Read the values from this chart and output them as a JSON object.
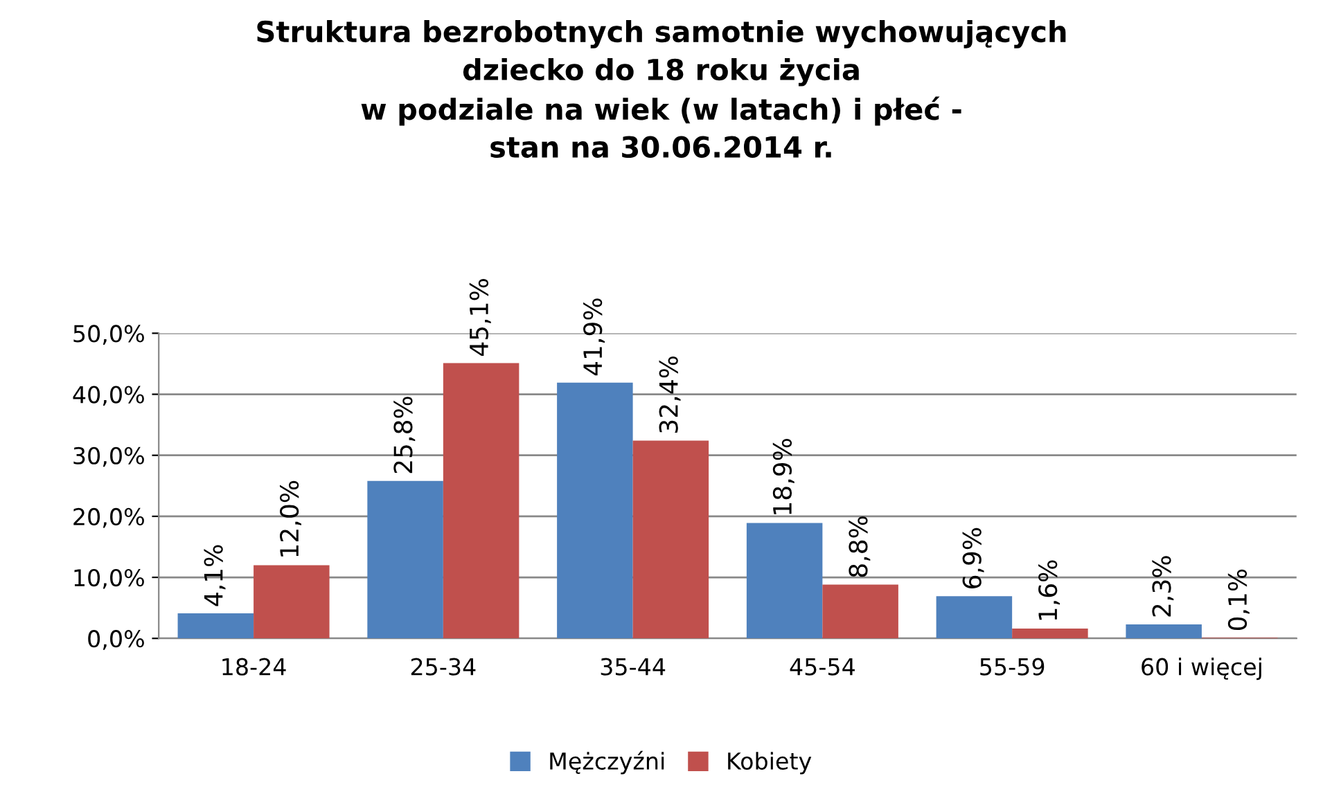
{
  "chart_data": {
    "type": "bar",
    "title": "Struktura bezrobotnych samotnie wychowujących\ndziecko do 18 roku życia\nw podziale na wiek (w latach) i płeć -\nstan na 30.06.2014 r.",
    "categories": [
      "18-24",
      "25-34",
      "35-44",
      "45-54",
      "55-59",
      "60 i więcej"
    ],
    "series": [
      {
        "name": "Mężczyźni",
        "color": "#4f81bd",
        "values": [
          4.1,
          25.8,
          41.9,
          18.9,
          6.9,
          2.3
        ],
        "value_labels": [
          "4,1%",
          "25,8%",
          "41,9%",
          "18,9%",
          "6,9%",
          "2,3%"
        ]
      },
      {
        "name": "Kobiety",
        "color": "#c0504d",
        "values": [
          12.0,
          45.1,
          32.4,
          8.8,
          1.6,
          0.1
        ],
        "value_labels": [
          "12,0%",
          "45,1%",
          "32,4%",
          "8,8%",
          "1,6%",
          "0,1%"
        ]
      }
    ],
    "ylim": [
      0,
      50
    ],
    "yticks": [
      {
        "value": 0,
        "label": "0,0%"
      },
      {
        "value": 10,
        "label": "10,0%"
      },
      {
        "value": 20,
        "label": "20,0%"
      },
      {
        "value": 30,
        "label": "30,0%"
      },
      {
        "value": 40,
        "label": "40,0%"
      },
      {
        "value": 50,
        "label": "50,0%"
      }
    ],
    "grid": "y",
    "legend": "bottom"
  }
}
